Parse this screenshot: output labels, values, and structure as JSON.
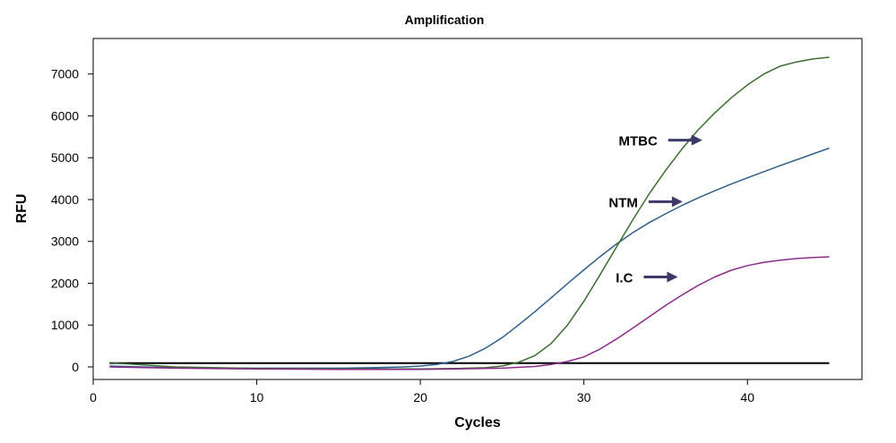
{
  "chart_data": {
    "type": "line",
    "title": "Amplification",
    "xlabel": "Cycles",
    "ylabel": "RFU",
    "xlim": [
      0,
      47
    ],
    "ylim": [
      -300,
      7850
    ],
    "x_ticks": [
      0,
      10,
      20,
      30,
      40
    ],
    "y_ticks": [
      0,
      1000,
      2000,
      3000,
      4000,
      5000,
      6000,
      7000
    ],
    "grid": false,
    "legend": "none",
    "threshold": {
      "y": 90,
      "x_range": [
        1,
        45
      ],
      "color": "#000000"
    },
    "series": [
      {
        "color": "#2e5f8a",
        "x": [
          1,
          3,
          5,
          8,
          10,
          12,
          15,
          17,
          19,
          20,
          21,
          22,
          23,
          24,
          25,
          26,
          27,
          28,
          29,
          30,
          31,
          32,
          33,
          34,
          35,
          36,
          37,
          38,
          39,
          40,
          42,
          45
        ],
        "y": [
          20,
          0,
          -20,
          -30,
          -30,
          -30,
          -30,
          -20,
          0,
          20,
          60,
          130,
          260,
          450,
          700,
          1000,
          1320,
          1650,
          1990,
          2320,
          2640,
          2940,
          3210,
          3450,
          3660,
          3860,
          4040,
          4210,
          4370,
          4520,
          4810,
          5230
        ]
      },
      {
        "color": "#3a6e2e",
        "x": [
          1,
          5,
          10,
          15,
          20,
          22,
          24,
          25,
          26,
          27,
          28,
          29,
          30,
          31,
          32,
          33,
          34,
          35,
          36,
          37,
          38,
          39,
          40,
          41,
          42,
          43,
          44,
          45
        ],
        "y": [
          100,
          0,
          -40,
          -50,
          -50,
          -40,
          -20,
          20,
          110,
          270,
          560,
          1000,
          1570,
          2210,
          2870,
          3520,
          4140,
          4700,
          5210,
          5670,
          6070,
          6430,
          6740,
          7000,
          7190,
          7290,
          7360,
          7400
        ]
      },
      {
        "color": "#8a2b8a",
        "x": [
          1,
          5,
          10,
          15,
          20,
          25,
          27,
          28,
          29,
          30,
          31,
          32,
          33,
          34,
          35,
          36,
          37,
          38,
          39,
          40,
          41,
          42,
          43,
          44,
          45
        ],
        "y": [
          0,
          -30,
          -50,
          -60,
          -60,
          -30,
          10,
          60,
          130,
          240,
          430,
          670,
          930,
          1200,
          1470,
          1720,
          1950,
          2150,
          2310,
          2420,
          2500,
          2550,
          2590,
          2615,
          2630
        ]
      }
    ],
    "annotations": [
      {
        "text": "MTBC",
        "x": 34.5,
        "y": 5420
      },
      {
        "text": "NTM",
        "x": 33.3,
        "y": 3950
      },
      {
        "text": "I.C",
        "x": 33.0,
        "y": 2150
      }
    ]
  }
}
